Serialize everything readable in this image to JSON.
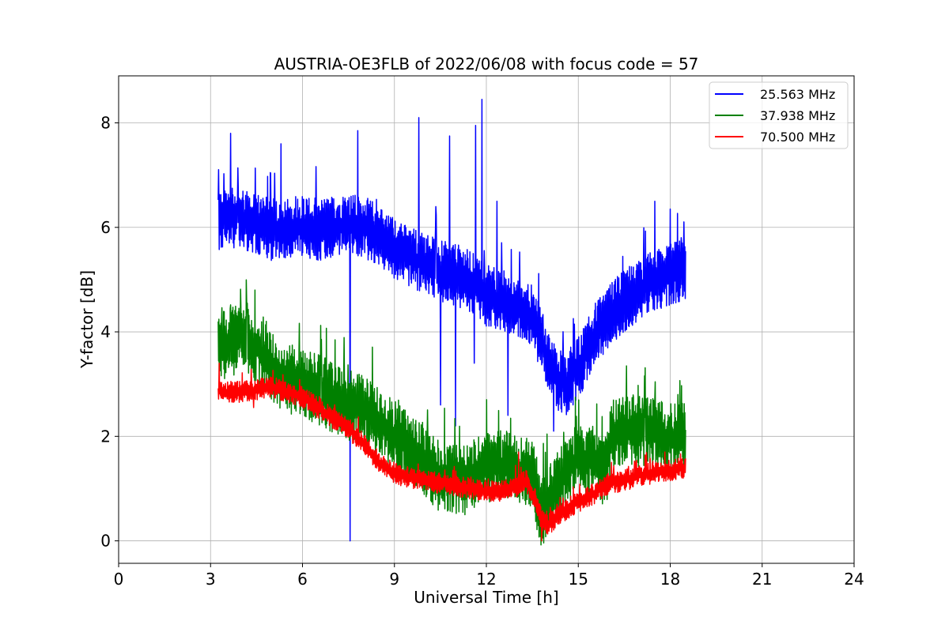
{
  "chart_data": {
    "type": "line",
    "title": "AUSTRIA-OE3FLB of 2022/06/08 with focus code = 57",
    "xlabel": "Universal Time [h]",
    "ylabel": "Y-factor [dB]",
    "xlim": [
      0,
      24
    ],
    "ylim": [
      -0.43,
      8.9
    ],
    "xticks": [
      0,
      3,
      6,
      9,
      12,
      15,
      18,
      21,
      24
    ],
    "yticks": [
      0,
      2,
      4,
      6,
      8
    ],
    "xtick_labels": [
      "0",
      "3",
      "6",
      "9",
      "12",
      "15",
      "18",
      "21",
      "24"
    ],
    "ytick_labels": [
      "0",
      "2",
      "4",
      "6",
      "8"
    ],
    "grid": true,
    "legend_position": "top-right",
    "series": [
      {
        "name": "25.563 MHz",
        "color": "#0000ff",
        "x": [
          3.25,
          3.5,
          4.0,
          4.5,
          5.0,
          5.5,
          6.0,
          6.5,
          7.0,
          7.5,
          8.0,
          8.5,
          9.0,
          9.5,
          10.0,
          10.5,
          11.0,
          11.5,
          12.0,
          12.5,
          13.0,
          13.5,
          14.0,
          14.3,
          14.6,
          15.0,
          15.5,
          16.0,
          16.5,
          17.0,
          17.5,
          18.0,
          18.5
        ],
        "y": [
          6.1,
          6.2,
          6.2,
          6.05,
          5.95,
          6.0,
          6.05,
          5.95,
          6.0,
          6.05,
          6.0,
          5.85,
          5.6,
          5.45,
          5.3,
          5.15,
          5.1,
          4.95,
          4.7,
          4.6,
          4.5,
          4.3,
          3.5,
          3.1,
          3.0,
          3.3,
          3.9,
          4.3,
          4.6,
          4.8,
          5.0,
          5.1,
          5.2
        ],
        "noise": 0.35,
        "spikes": [
          [
            3.65,
            7.8
          ],
          [
            5.3,
            7.6
          ],
          [
            7.55,
            0.0
          ],
          [
            7.8,
            7.85
          ],
          [
            9.8,
            8.1
          ],
          [
            10.5,
            2.6
          ],
          [
            10.8,
            7.75
          ],
          [
            11.0,
            2.2
          ],
          [
            11.6,
            3.4
          ],
          [
            11.65,
            7.95
          ],
          [
            11.85,
            8.45
          ],
          [
            12.35,
            6.5
          ],
          [
            12.7,
            2.4
          ],
          [
            14.2,
            2.1
          ],
          [
            17.5,
            6.5
          ],
          [
            18.0,
            6.35
          ]
        ]
      },
      {
        "name": "37.938 MHz",
        "color": "#008000",
        "x": [
          3.25,
          3.5,
          4.0,
          4.5,
          5.0,
          5.5,
          6.0,
          6.5,
          7.0,
          7.5,
          8.0,
          8.5,
          9.0,
          9.5,
          10.0,
          10.5,
          11.0,
          11.5,
          12.0,
          12.5,
          13.0,
          13.5,
          13.8,
          14.0,
          14.5,
          15.0,
          15.5,
          15.9,
          16.1,
          16.5,
          17.0,
          17.5,
          18.0,
          18.5
        ],
        "y": [
          3.7,
          3.75,
          3.85,
          3.7,
          3.3,
          3.1,
          3.0,
          2.9,
          2.75,
          2.6,
          2.5,
          2.25,
          2.0,
          1.75,
          1.5,
          1.2,
          1.15,
          1.25,
          1.4,
          1.45,
          1.35,
          1.3,
          0.5,
          0.7,
          1.25,
          1.6,
          1.55,
          1.3,
          2.05,
          2.1,
          2.1,
          2.05,
          1.95,
          2.0
        ],
        "noise": 0.4,
        "spikes": [
          [
            4.45,
            4.8
          ],
          [
            4.2,
            4.55
          ],
          [
            10.45,
            0.85
          ],
          [
            11.3,
            0.5
          ],
          [
            13.8,
            0.0
          ],
          [
            14.9,
            2.75
          ],
          [
            18.25,
            2.8
          ]
        ]
      },
      {
        "name": "70.500 MHz",
        "color": "#ff0000",
        "x": [
          3.25,
          3.5,
          4.0,
          4.5,
          5.0,
          5.5,
          6.0,
          6.5,
          7.0,
          7.5,
          8.0,
          8.5,
          9.0,
          9.5,
          10.0,
          10.5,
          11.0,
          11.5,
          12.0,
          12.5,
          13.0,
          13.3,
          13.6,
          13.8,
          14.0,
          14.5,
          15.0,
          15.5,
          16.0,
          16.5,
          17.0,
          17.5,
          18.0,
          18.5
        ],
        "y": [
          2.85,
          2.85,
          2.85,
          2.9,
          2.95,
          2.85,
          2.75,
          2.55,
          2.35,
          2.15,
          1.85,
          1.5,
          1.3,
          1.2,
          1.15,
          1.1,
          1.05,
          1.0,
          0.95,
          0.95,
          1.05,
          1.15,
          0.8,
          0.4,
          0.3,
          0.55,
          0.75,
          0.9,
          1.1,
          1.15,
          1.25,
          1.3,
          1.35,
          1.4
        ],
        "noise": 0.12,
        "spikes": [
          [
            3.28,
            3.4
          ],
          [
            4.4,
            2.55
          ],
          [
            13.05,
            1.7
          ],
          [
            13.8,
            0.0
          ]
        ]
      }
    ]
  }
}
